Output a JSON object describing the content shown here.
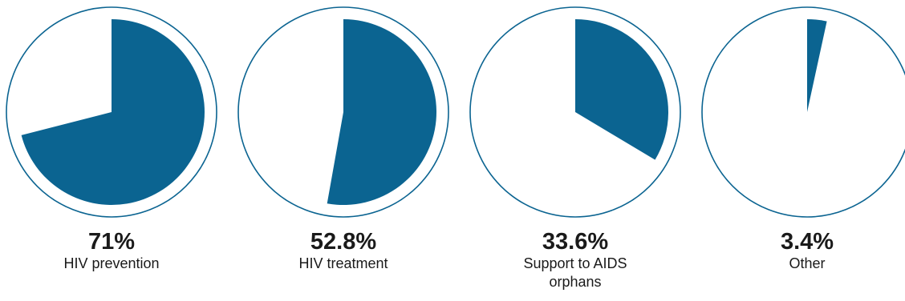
{
  "chart_data": {
    "type": "pie",
    "colors": {
      "filled": "#0b6491",
      "outline": "#0b6491",
      "empty": "#ffffff"
    },
    "items": [
      {
        "value": 71,
        "percent_label": "71%",
        "label": "HIV prevention"
      },
      {
        "value": 52.8,
        "percent_label": "52.8%",
        "label": "HIV treatment"
      },
      {
        "value": 33.6,
        "percent_label": "33.6%",
        "label": "Support to AIDS orphans"
      },
      {
        "value": 3.4,
        "percent_label": "3.4%",
        "label": "Other"
      }
    ]
  }
}
